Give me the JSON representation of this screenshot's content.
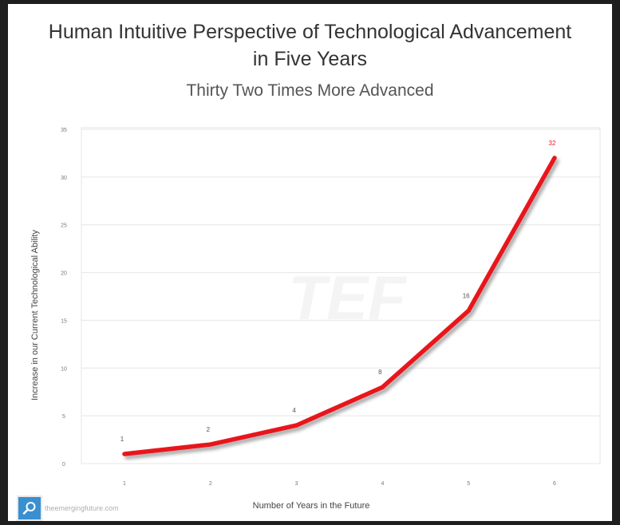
{
  "chart_data": {
    "type": "line",
    "title": "Human Intuitive Perspective of Technological Advancement in Five Years",
    "title_lines": [
      "Human Intuitive Perspective of Technological Advancement",
      "in Five Years"
    ],
    "subtitle": "Thirty Two Times More Advanced",
    "xlabel": "Number of Years in the Future",
    "ylabel": "Increase in our Current Technological Ability",
    "x": [
      1,
      2,
      3,
      4,
      5,
      6
    ],
    "series": [
      {
        "values": [
          1,
          2,
          4,
          8,
          16,
          32
        ],
        "color": "#e8141b"
      }
    ],
    "data_labels": [
      "1",
      "2",
      "4",
      "8",
      "16",
      "32"
    ],
    "xlim": [
      1,
      6
    ],
    "ylim": [
      0,
      35
    ],
    "y_ticks": [
      0,
      5,
      10,
      15,
      20,
      25,
      30,
      35
    ],
    "x_ticks": [
      1,
      2,
      3,
      4,
      5,
      6
    ],
    "grid": "horizontal",
    "legend": "none",
    "label_color_last": "#e8141b",
    "label_color": "#555555"
  },
  "watermark": "TEF",
  "source_text": "theemergingfuture.com",
  "icons": {
    "zoom": "magnifier-icon"
  },
  "colors": {
    "background": "#ffffff",
    "frame": "#1e1e1e",
    "line": "#e8141b",
    "zoom_button": "#3a8fd0"
  }
}
